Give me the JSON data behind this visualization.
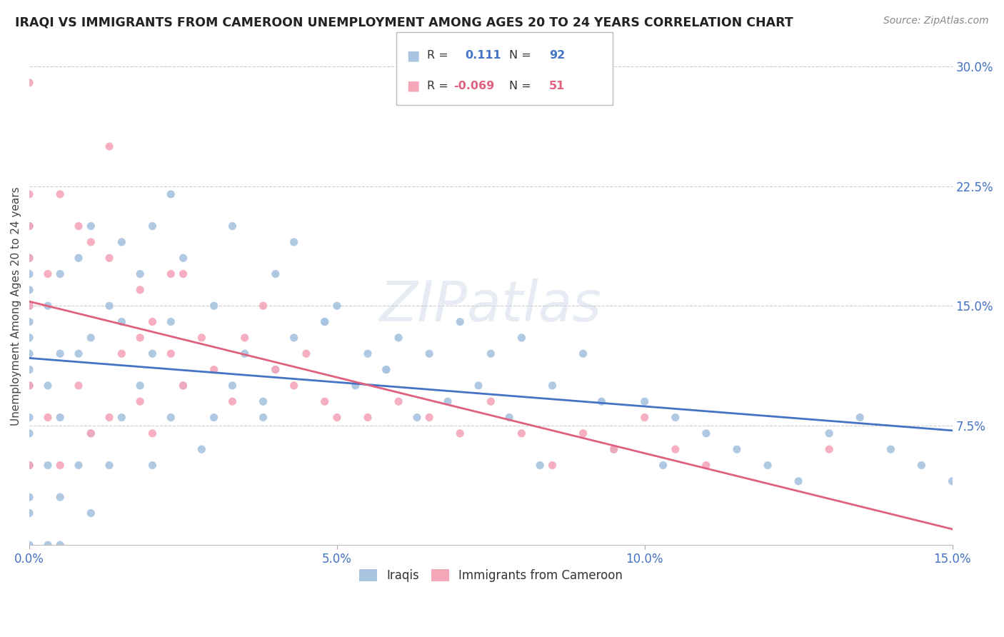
{
  "title": "IRAQI VS IMMIGRANTS FROM CAMEROON UNEMPLOYMENT AMONG AGES 20 TO 24 YEARS CORRELATION CHART",
  "source": "Source: ZipAtlas.com",
  "ylabel": "Unemployment Among Ages 20 to 24 years",
  "x_min": 0.0,
  "x_max": 0.15,
  "y_min": 0.0,
  "y_max": 0.3,
  "x_tick_vals": [
    0.0,
    0.05,
    0.1,
    0.15
  ],
  "x_tick_labels": [
    "0.0%",
    "5.0%",
    "10.0%",
    "15.0%"
  ],
  "y_tick_vals": [
    0.075,
    0.15,
    0.225,
    0.3
  ],
  "y_tick_labels": [
    "7.5%",
    "15.0%",
    "22.5%",
    "30.0%"
  ],
  "iraqis_color": "#a8c4e0",
  "cameroon_color": "#f4a7b9",
  "trend_iraqis_color": "#4472c4",
  "trend_cameroon_color": "#e06080",
  "iraqis_R": 0.111,
  "iraqis_N": 92,
  "cameroon_R": -0.069,
  "cameroon_N": 51,
  "watermark": "ZIPatlas",
  "legend_label_iraqis": "Iraqis",
  "legend_label_cameroon": "Immigrants from Cameroon",
  "iraqis_x": [
    0.0,
    0.0,
    0.0,
    0.0,
    0.0,
    0.0,
    0.0,
    0.0,
    0.0,
    0.0,
    0.0,
    0.0,
    0.0,
    0.0,
    0.0,
    0.0,
    0.003,
    0.003,
    0.003,
    0.003,
    0.005,
    0.005,
    0.005,
    0.005,
    0.005,
    0.008,
    0.008,
    0.008,
    0.01,
    0.01,
    0.01,
    0.01,
    0.013,
    0.013,
    0.015,
    0.015,
    0.015,
    0.018,
    0.018,
    0.02,
    0.02,
    0.02,
    0.023,
    0.023,
    0.023,
    0.025,
    0.025,
    0.03,
    0.03,
    0.033,
    0.035,
    0.038,
    0.04,
    0.04,
    0.043,
    0.048,
    0.05,
    0.055,
    0.058,
    0.06,
    0.063,
    0.065,
    0.068,
    0.07,
    0.073,
    0.075,
    0.078,
    0.08,
    0.083,
    0.085,
    0.09,
    0.093,
    0.095,
    0.1,
    0.103,
    0.105,
    0.11,
    0.115,
    0.12,
    0.125,
    0.13,
    0.135,
    0.14,
    0.145,
    0.15,
    0.028,
    0.033,
    0.038,
    0.043,
    0.048,
    0.053,
    0.058
  ],
  "iraqis_y": [
    0.0,
    0.02,
    0.03,
    0.05,
    0.07,
    0.08,
    0.1,
    0.11,
    0.12,
    0.13,
    0.14,
    0.15,
    0.16,
    0.17,
    0.18,
    0.2,
    0.0,
    0.05,
    0.1,
    0.15,
    0.0,
    0.03,
    0.08,
    0.12,
    0.17,
    0.05,
    0.12,
    0.18,
    0.02,
    0.07,
    0.13,
    0.2,
    0.05,
    0.15,
    0.08,
    0.14,
    0.19,
    0.1,
    0.17,
    0.05,
    0.12,
    0.2,
    0.08,
    0.14,
    0.22,
    0.1,
    0.18,
    0.08,
    0.15,
    0.1,
    0.12,
    0.09,
    0.11,
    0.17,
    0.13,
    0.14,
    0.15,
    0.12,
    0.11,
    0.13,
    0.08,
    0.12,
    0.09,
    0.14,
    0.1,
    0.12,
    0.08,
    0.13,
    0.05,
    0.1,
    0.12,
    0.09,
    0.06,
    0.09,
    0.05,
    0.08,
    0.07,
    0.06,
    0.05,
    0.04,
    0.07,
    0.08,
    0.06,
    0.05,
    0.04,
    0.06,
    0.2,
    0.08,
    0.19,
    0.14,
    0.1,
    0.11
  ],
  "cameroon_x": [
    0.0,
    0.0,
    0.0,
    0.0,
    0.0,
    0.0,
    0.0,
    0.003,
    0.003,
    0.005,
    0.005,
    0.008,
    0.008,
    0.01,
    0.01,
    0.013,
    0.013,
    0.015,
    0.018,
    0.018,
    0.02,
    0.02,
    0.023,
    0.025,
    0.025,
    0.028,
    0.03,
    0.033,
    0.035,
    0.038,
    0.04,
    0.043,
    0.045,
    0.048,
    0.05,
    0.055,
    0.06,
    0.065,
    0.07,
    0.075,
    0.08,
    0.085,
    0.09,
    0.095,
    0.1,
    0.105,
    0.11,
    0.013,
    0.018,
    0.023,
    0.13
  ],
  "cameroon_y": [
    0.05,
    0.1,
    0.15,
    0.18,
    0.2,
    0.22,
    0.29,
    0.08,
    0.17,
    0.05,
    0.22,
    0.1,
    0.2,
    0.07,
    0.19,
    0.08,
    0.18,
    0.12,
    0.09,
    0.16,
    0.07,
    0.14,
    0.12,
    0.1,
    0.17,
    0.13,
    0.11,
    0.09,
    0.13,
    0.15,
    0.11,
    0.1,
    0.12,
    0.09,
    0.08,
    0.08,
    0.09,
    0.08,
    0.07,
    0.09,
    0.07,
    0.05,
    0.07,
    0.06,
    0.08,
    0.06,
    0.05,
    0.25,
    0.13,
    0.17,
    0.06
  ]
}
